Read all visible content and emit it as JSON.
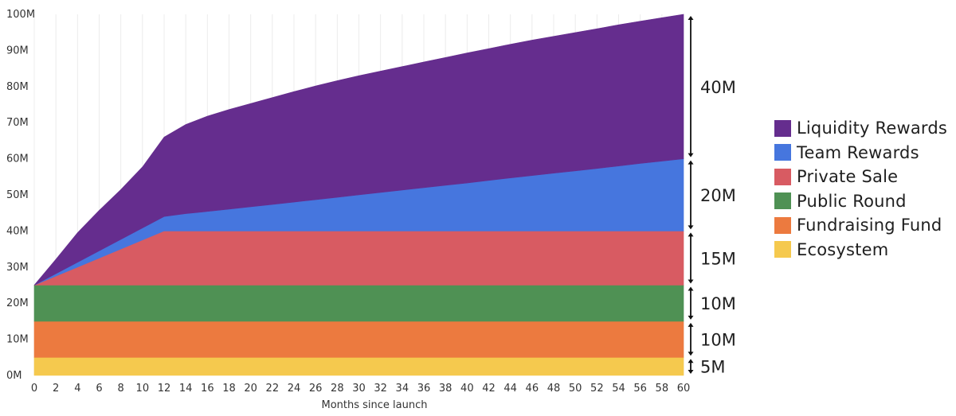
{
  "chart_data": {
    "type": "area",
    "stacked": true,
    "title": "",
    "xlabel": "Months since launch",
    "ylabel": "",
    "xlim": [
      0,
      60
    ],
    "ylim": [
      0,
      100
    ],
    "x_ticks": [
      0,
      2,
      4,
      6,
      8,
      10,
      12,
      14,
      16,
      18,
      20,
      22,
      24,
      26,
      28,
      30,
      32,
      34,
      36,
      38,
      40,
      42,
      44,
      46,
      48,
      50,
      52,
      54,
      56,
      58,
      60
    ],
    "y_ticks": [
      {
        "value": 0,
        "label": "0M"
      },
      {
        "value": 10,
        "label": "10M"
      },
      {
        "value": 20,
        "label": "20M"
      },
      {
        "value": 30,
        "label": "30M"
      },
      {
        "value": 40,
        "label": "40M"
      },
      {
        "value": 50,
        "label": "50M"
      },
      {
        "value": 60,
        "label": "60M"
      },
      {
        "value": 70,
        "label": "70M"
      },
      {
        "value": 80,
        "label": "80M"
      },
      {
        "value": 90,
        "label": "90M"
      },
      {
        "value": 100,
        "label": "100M"
      }
    ],
    "series": [
      {
        "name": "Ecosystem",
        "color": "#F5C94E",
        "x": [
          0,
          60
        ],
        "values": [
          5,
          5
        ]
      },
      {
        "name": "Fundraising Fund",
        "color": "#EC7A3F",
        "x": [
          0,
          60
        ],
        "values": [
          10,
          10
        ]
      },
      {
        "name": "Public Round",
        "color": "#4F9154",
        "x": [
          0,
          60
        ],
        "values": [
          10,
          10
        ]
      },
      {
        "name": "Private Sale",
        "color": "#D85B62",
        "x": [
          0,
          12,
          60
        ],
        "values": [
          0,
          15,
          15
        ]
      },
      {
        "name": "Team Rewards",
        "color": "#4676DE",
        "x": [
          0,
          12,
          14,
          16,
          20,
          24,
          30,
          36,
          40,
          44,
          48,
          52,
          56,
          60
        ],
        "values": [
          0,
          4,
          4.8,
          5.4,
          6.7,
          8,
          10,
          12,
          13.3,
          14.7,
          16,
          17.3,
          18.7,
          20
        ]
      },
      {
        "name": "Liquidity Rewards",
        "color": "#652D8E",
        "x": [
          0,
          2,
          4,
          6,
          8,
          10,
          12,
          14,
          16,
          18,
          20,
          22,
          24,
          26,
          28,
          30,
          32,
          34,
          36,
          38,
          40,
          42,
          44,
          46,
          48,
          50,
          52,
          54,
          56,
          58,
          60
        ],
        "values": [
          0,
          4,
          8.2,
          11.2,
          13.8,
          16.9,
          22,
          24.7,
          26.4,
          27.6,
          28.6,
          29.6,
          30.6,
          31.5,
          32.3,
          33,
          33.6,
          34.2,
          34.8,
          35.4,
          36,
          36.5,
          37,
          37.5,
          37.9,
          38.3,
          38.7,
          39.1,
          39.4,
          39.7,
          40
        ]
      }
    ],
    "legend": {
      "position": "right",
      "items": [
        {
          "label": "Liquidity Rewards",
          "color": "#652D8E"
        },
        {
          "label": "Team Rewards",
          "color": "#4676DE"
        },
        {
          "label": "Private Sale",
          "color": "#D85B62"
        },
        {
          "label": "Public Round",
          "color": "#4F9154"
        },
        {
          "label": "Fundraising Fund",
          "color": "#EC7A3F"
        },
        {
          "label": "Ecosystem",
          "color": "#F5C94E"
        }
      ]
    },
    "annotations": [
      {
        "label": "40M",
        "from": 60,
        "to": 100
      },
      {
        "label": "20M",
        "from": 40,
        "to": 60
      },
      {
        "label": "15M",
        "from": 25,
        "to": 40
      },
      {
        "label": "10M",
        "from": 15,
        "to": 25
      },
      {
        "label": "10M",
        "from": 5,
        "to": 15
      },
      {
        "label": "5M",
        "from": 0,
        "to": 5
      }
    ]
  }
}
